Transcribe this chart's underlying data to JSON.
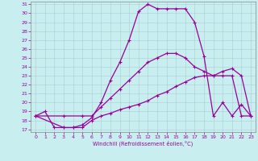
{
  "xlabel": "Windchill (Refroidissement éolien,°C)",
  "background_color": "#c8eef0",
  "line_color": "#990099",
  "xlim": [
    -0.5,
    23.5
  ],
  "ylim": [
    16.7,
    31.3
  ],
  "yticks": [
    17,
    18,
    19,
    20,
    21,
    22,
    23,
    24,
    25,
    26,
    27,
    28,
    29,
    30,
    31
  ],
  "xticks": [
    0,
    1,
    2,
    3,
    4,
    5,
    6,
    7,
    8,
    9,
    10,
    11,
    12,
    13,
    14,
    15,
    16,
    17,
    18,
    19,
    20,
    21,
    22,
    23
  ],
  "line1_x": [
    0,
    1,
    2,
    3,
    4,
    5,
    6,
    7,
    8,
    9,
    10,
    11,
    12,
    13,
    14,
    15,
    16,
    17,
    18,
    19,
    20,
    21,
    22,
    23
  ],
  "line1_y": [
    18.5,
    19.0,
    17.2,
    17.2,
    17.2,
    17.5,
    18.3,
    20.0,
    22.5,
    24.5,
    27.0,
    30.2,
    31.0,
    30.5,
    30.5,
    30.5,
    30.5,
    29.0,
    25.2,
    18.5,
    20.0,
    18.5,
    19.8,
    18.5
  ],
  "line2_x": [
    0,
    3,
    5,
    6,
    7,
    8,
    9,
    10,
    11,
    12,
    13,
    14,
    15,
    16,
    17,
    18,
    19,
    20,
    21,
    22,
    23
  ],
  "line2_y": [
    18.5,
    18.5,
    18.5,
    18.5,
    19.5,
    20.5,
    21.5,
    22.5,
    23.5,
    24.5,
    25.0,
    25.5,
    25.5,
    25.0,
    24.0,
    23.5,
    23.0,
    23.5,
    23.8,
    23.0,
    18.5
  ],
  "line3_x": [
    0,
    3,
    4,
    5,
    6,
    7,
    8,
    9,
    10,
    11,
    12,
    13,
    14,
    15,
    16,
    17,
    18,
    19,
    20,
    21,
    22,
    23
  ],
  "line3_y": [
    18.5,
    17.2,
    17.2,
    17.2,
    18.0,
    18.5,
    18.8,
    19.2,
    19.5,
    19.8,
    20.2,
    20.8,
    21.2,
    21.8,
    22.3,
    22.8,
    23.0,
    23.0,
    23.0,
    23.0,
    18.5,
    18.5
  ]
}
